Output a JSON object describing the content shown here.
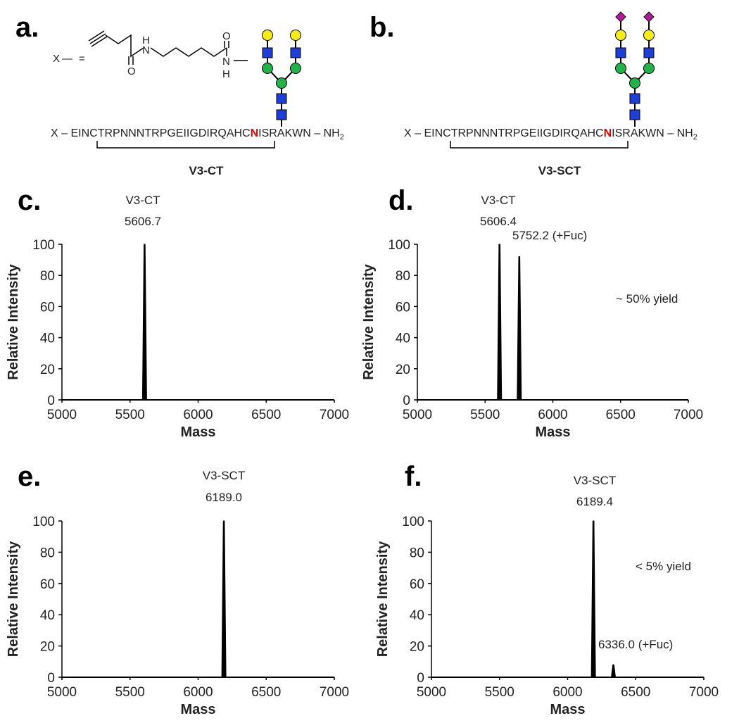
{
  "panel_a": {
    "label": "a.",
    "linker": {
      "x": "X",
      "dash": "—",
      "eq": "=",
      "atoms": [
        "H",
        "N",
        "O",
        "O",
        "N",
        "H"
      ]
    },
    "sequence": {
      "x": "X",
      "bond": " – ",
      "left": "EINCTRPNNNTRPGEIIGDIRQAHC",
      "site": "N",
      "right": "ISRAKWN",
      "end": "NH",
      "end_sub": "2"
    },
    "name": "V3-CT"
  },
  "panel_b": {
    "label": "b.",
    "sequence": {
      "x": "X",
      "bond": " – ",
      "left": "EINCTRPNNNTRPGEIIGDIRQAHC",
      "site": "N",
      "right": "ISRAKWN",
      "end": "NH",
      "end_sub": "2"
    },
    "name": "V3-SCT"
  },
  "chart_data": [
    {
      "type": "spectrum",
      "label": "c.",
      "xlabel": "Mass",
      "ylabel": "Relative Intensity",
      "xlim": [
        5000,
        7000
      ],
      "ylim": [
        0,
        100
      ],
      "xticks": [
        5000,
        5500,
        6000,
        6500,
        7000
      ],
      "yticks": [
        0,
        20,
        40,
        60,
        80,
        100
      ],
      "annotations": [
        "V3-CT",
        "5606.7"
      ],
      "color": "#000000",
      "x": [
        5606.7
      ],
      "values": [
        100
      ]
    },
    {
      "type": "spectrum",
      "label": "d.",
      "xlabel": "Mass",
      "ylabel": "Relative Intensity",
      "xlim": [
        5000,
        7000
      ],
      "ylim": [
        0,
        100
      ],
      "xticks": [
        5000,
        5500,
        6000,
        6500,
        7000
      ],
      "yticks": [
        0,
        20,
        40,
        60,
        80,
        100
      ],
      "annotations": [
        "V3-CT",
        "5606.4",
        "5752.2 (+Fuc)",
        "~ 50% yield"
      ],
      "color": "#000000",
      "x": [
        5606.4,
        5752.2
      ],
      "values": [
        100,
        92
      ]
    },
    {
      "type": "spectrum",
      "label": "e.",
      "xlabel": "Mass",
      "ylabel": "Relative Intensity",
      "xlim": [
        5000,
        7000
      ],
      "ylim": [
        0,
        100
      ],
      "xticks": [
        5000,
        5500,
        6000,
        6500,
        7000
      ],
      "yticks": [
        0,
        20,
        40,
        60,
        80,
        100
      ],
      "annotations": [
        "V3-SCT",
        "6189.0"
      ],
      "color": "#000000",
      "x": [
        6189.0
      ],
      "values": [
        100
      ]
    },
    {
      "type": "spectrum",
      "label": "f.",
      "xlabel": "Mass",
      "ylabel": "Relative Intensity",
      "xlim": [
        5000,
        7000
      ],
      "ylim": [
        0,
        100
      ],
      "xticks": [
        5000,
        5500,
        6000,
        6500,
        7000
      ],
      "yticks": [
        0,
        20,
        40,
        60,
        80,
        100
      ],
      "annotations": [
        "V3-SCT",
        "6189.4",
        "< 5% yield",
        "6336.0 (+Fuc)"
      ],
      "color": "#000000",
      "x": [
        6189.4,
        6336.0
      ],
      "values": [
        100,
        8
      ]
    }
  ]
}
